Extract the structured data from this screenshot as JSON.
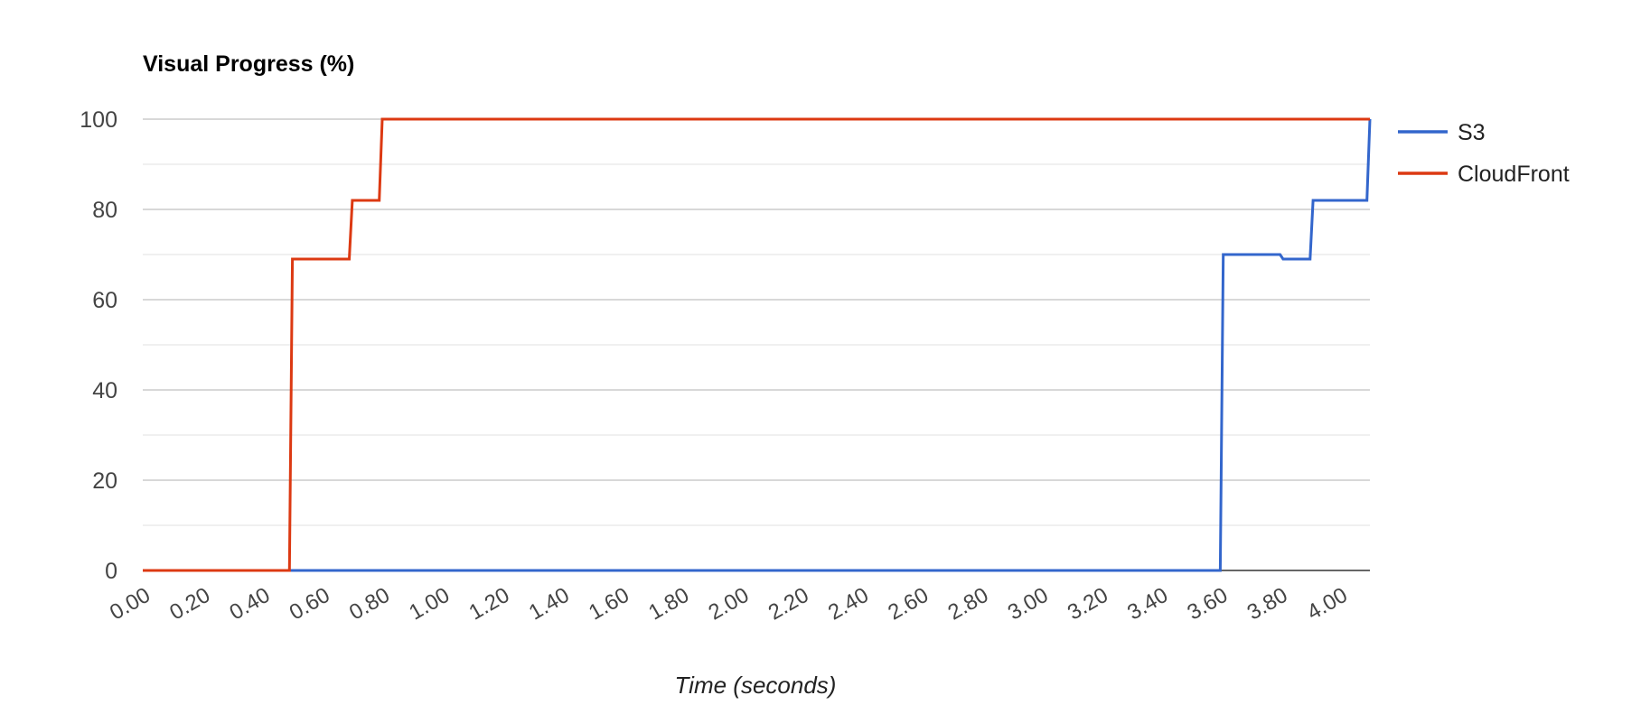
{
  "chart_data": {
    "type": "line",
    "title": "Visual Progress (%)",
    "xlabel": "Time (seconds)",
    "ylabel": "",
    "xlim": [
      0,
      4.1
    ],
    "ylim": [
      0,
      100
    ],
    "y_ticks": [
      0,
      20,
      40,
      60,
      80,
      100
    ],
    "x_ticks": [
      "0.00",
      "0.20",
      "0.40",
      "0.60",
      "0.80",
      "1.00",
      "1.20",
      "1.40",
      "1.60",
      "1.80",
      "2.00",
      "2.20",
      "2.40",
      "2.60",
      "2.80",
      "3.00",
      "3.20",
      "3.40",
      "3.60",
      "3.80",
      "4.00"
    ],
    "grid": true,
    "legend_position": "right",
    "series": [
      {
        "name": "S3",
        "color": "#3366cc",
        "points": [
          [
            0,
            0
          ],
          [
            3.6,
            0
          ],
          [
            3.61,
            70
          ],
          [
            3.8,
            70
          ],
          [
            3.81,
            69
          ],
          [
            3.9,
            69
          ],
          [
            3.91,
            82
          ],
          [
            4.09,
            82
          ],
          [
            4.1,
            100
          ]
        ]
      },
      {
        "name": "CloudFront",
        "color": "#dc3912",
        "points": [
          [
            0,
            0
          ],
          [
            0.49,
            0
          ],
          [
            0.5,
            69
          ],
          [
            0.69,
            69
          ],
          [
            0.7,
            82
          ],
          [
            0.79,
            82
          ],
          [
            0.8,
            100
          ],
          [
            4.1,
            100
          ]
        ]
      }
    ]
  }
}
